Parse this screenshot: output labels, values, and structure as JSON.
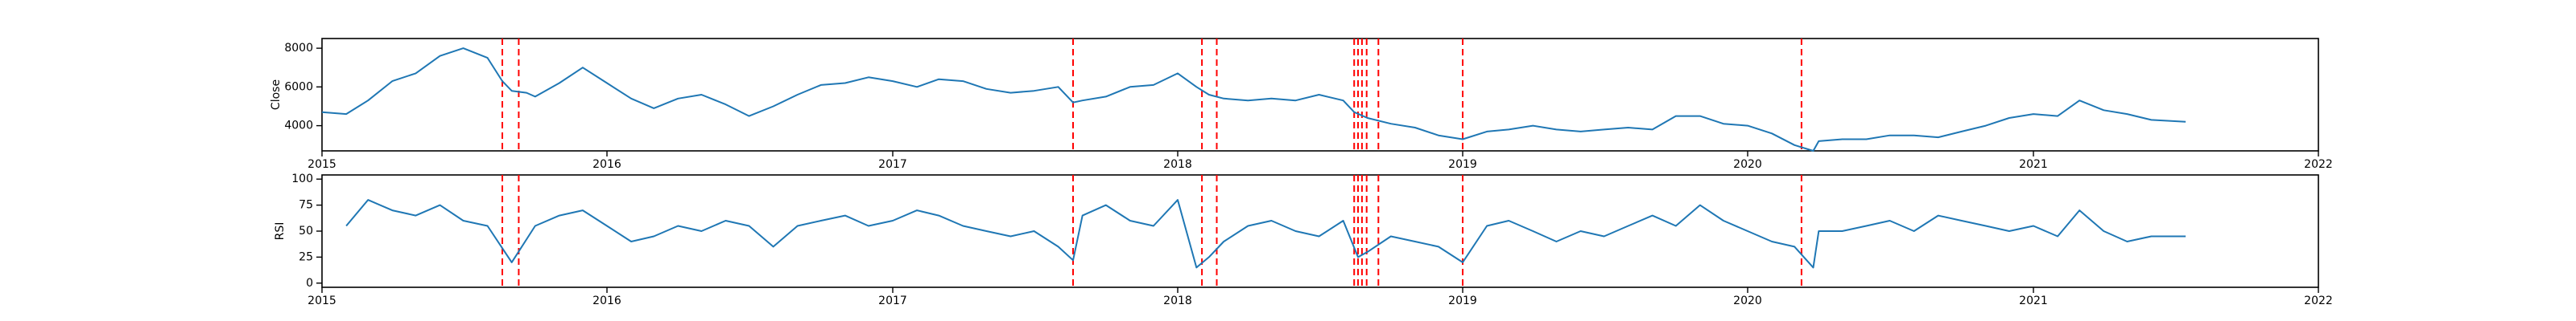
{
  "charts": {
    "price": {
      "ylabel": "Close"
    },
    "rsi": {
      "ylabel": "RSI"
    }
  },
  "chart_data": [
    {
      "type": "line",
      "title": "",
      "xlabel": "",
      "ylabel": "Close",
      "xlim": [
        "2015-01-01",
        "2022-01-01"
      ],
      "ylim": [
        2700,
        8500
      ],
      "xticks": [
        "2015",
        "2016",
        "2017",
        "2018",
        "2019",
        "2020",
        "2021",
        "2022"
      ],
      "yticks": [
        4000,
        6000,
        8000
      ],
      "grid": false,
      "line_color": "#1f77b4",
      "marker_color": "#ff0000",
      "series": [
        {
          "x": [
            "2015-01-01",
            "2015-02-01",
            "2015-03-01",
            "2015-04-01",
            "2015-05-01",
            "2015-06-01",
            "2015-07-01",
            "2015-08-01",
            "2015-08-20",
            "2015-09-01",
            "2015-09-20",
            "2015-10-01",
            "2015-11-01",
            "2015-12-01",
            "2016-01-01",
            "2016-02-01",
            "2016-03-01",
            "2016-04-01",
            "2016-05-01",
            "2016-06-01",
            "2016-07-01",
            "2016-08-01",
            "2016-09-01",
            "2016-10-01",
            "2016-11-01",
            "2016-12-01",
            "2017-01-01",
            "2017-02-01",
            "2017-03-01",
            "2017-04-01",
            "2017-05-01",
            "2017-06-01",
            "2017-07-01",
            "2017-08-01",
            "2017-08-20",
            "2017-09-01",
            "2017-10-01",
            "2017-11-01",
            "2017-12-01",
            "2018-01-01",
            "2018-01-25",
            "2018-02-10",
            "2018-03-01",
            "2018-04-01",
            "2018-05-01",
            "2018-06-01",
            "2018-07-01",
            "2018-08-01",
            "2018-08-15",
            "2018-09-01",
            "2018-10-01",
            "2018-11-01",
            "2018-12-01",
            "2019-01-01",
            "2019-02-01",
            "2019-03-01",
            "2019-04-01",
            "2019-05-01",
            "2019-06-01",
            "2019-07-01",
            "2019-08-01",
            "2019-09-01",
            "2019-10-01",
            "2019-11-01",
            "2019-12-01",
            "2020-01-01",
            "2020-02-01",
            "2020-03-01",
            "2020-03-25",
            "2020-04-01",
            "2020-05-01",
            "2020-06-01",
            "2020-07-01",
            "2020-08-01",
            "2020-09-01",
            "2020-10-01",
            "2020-11-01",
            "2020-12-01",
            "2021-01-01",
            "2021-02-01",
            "2021-03-01",
            "2021-04-01",
            "2021-05-01",
            "2021-06-01",
            "2021-07-15"
          ],
          "y": [
            4700,
            4600,
            5300,
            6300,
            6700,
            7600,
            8000,
            7500,
            6300,
            5800,
            5700,
            5500,
            6200,
            7000,
            6200,
            5400,
            4900,
            5400,
            5600,
            5100,
            4500,
            5000,
            5600,
            6100,
            6200,
            6500,
            6300,
            6000,
            6400,
            6300,
            5900,
            5700,
            5800,
            6000,
            5200,
            5300,
            5500,
            6000,
            6100,
            6700,
            6000,
            5600,
            5400,
            5300,
            5400,
            5300,
            5600,
            5300,
            4700,
            4400,
            4100,
            3900,
            3500,
            3300,
            3700,
            3800,
            4000,
            3800,
            3700,
            3800,
            3900,
            3800,
            4500,
            4500,
            4100,
            4000,
            3600,
            3000,
            2700,
            3200,
            3300,
            3300,
            3500,
            3500,
            3400,
            3700,
            4000,
            4400,
            4600,
            4500,
            5300,
            4800,
            4600,
            4300,
            4200
          ]
        }
      ],
      "event_dates": [
        "2015-08-20",
        "2015-09-10",
        "2017-08-20",
        "2018-02-01",
        "2018-02-20",
        "2018-08-15",
        "2018-08-20",
        "2018-08-25",
        "2018-08-31",
        "2018-09-15",
        "2019-01-01",
        "2020-03-10"
      ]
    },
    {
      "type": "line",
      "title": "",
      "xlabel": "",
      "ylabel": "RSI",
      "xlim": [
        "2015-01-01",
        "2022-01-01"
      ],
      "ylim": [
        -4,
        104
      ],
      "xticks": [
        "2015",
        "2016",
        "2017",
        "2018",
        "2019",
        "2020",
        "2021",
        "2022"
      ],
      "yticks": [
        0,
        25,
        50,
        75,
        100
      ],
      "grid": false,
      "line_color": "#1f77b4",
      "marker_color": "#ff0000",
      "series": [
        {
          "x": [
            "2015-02-01",
            "2015-03-01",
            "2015-04-01",
            "2015-05-01",
            "2015-06-01",
            "2015-07-01",
            "2015-08-01",
            "2015-09-01",
            "2015-10-01",
            "2015-11-01",
            "2015-12-01",
            "2016-01-01",
            "2016-02-01",
            "2016-03-01",
            "2016-04-01",
            "2016-05-01",
            "2016-06-01",
            "2016-07-01",
            "2016-08-01",
            "2016-09-01",
            "2016-10-01",
            "2016-11-01",
            "2016-12-01",
            "2017-01-01",
            "2017-02-01",
            "2017-03-01",
            "2017-04-01",
            "2017-05-01",
            "2017-06-01",
            "2017-07-01",
            "2017-08-01",
            "2017-08-20",
            "2017-09-01",
            "2017-10-01",
            "2017-11-01",
            "2017-12-01",
            "2018-01-01",
            "2018-01-25",
            "2018-02-10",
            "2018-03-01",
            "2018-04-01",
            "2018-05-01",
            "2018-06-01",
            "2018-07-01",
            "2018-08-01",
            "2018-08-20",
            "2018-09-01",
            "2018-10-01",
            "2018-11-01",
            "2018-12-01",
            "2019-01-01",
            "2019-02-01",
            "2019-03-01",
            "2019-04-01",
            "2019-05-01",
            "2019-06-01",
            "2019-07-01",
            "2019-08-01",
            "2019-09-01",
            "2019-10-01",
            "2019-11-01",
            "2019-12-01",
            "2020-01-01",
            "2020-02-01",
            "2020-03-01",
            "2020-03-25",
            "2020-04-01",
            "2020-05-01",
            "2020-06-01",
            "2020-07-01",
            "2020-08-01",
            "2020-09-01",
            "2020-10-01",
            "2020-11-01",
            "2020-12-01",
            "2021-01-01",
            "2021-02-01",
            "2021-03-01",
            "2021-04-01",
            "2021-05-01",
            "2021-06-01",
            "2021-07-15"
          ],
          "y": [
            55,
            80,
            70,
            65,
            75,
            60,
            55,
            20,
            55,
            65,
            70,
            55,
            40,
            45,
            55,
            50,
            60,
            55,
            35,
            55,
            60,
            65,
            55,
            60,
            70,
            65,
            55,
            50,
            45,
            50,
            35,
            22,
            65,
            75,
            60,
            55,
            80,
            15,
            25,
            40,
            55,
            60,
            50,
            45,
            60,
            25,
            30,
            45,
            40,
            35,
            20,
            55,
            60,
            50,
            40,
            50,
            45,
            55,
            65,
            55,
            75,
            60,
            50,
            40,
            35,
            15,
            50,
            50,
            55,
            60,
            50,
            65,
            60,
            55,
            50,
            55,
            45,
            70,
            50,
            40,
            45,
            45
          ]
        }
      ],
      "event_dates": [
        "2015-08-20",
        "2015-09-10",
        "2017-08-20",
        "2018-02-01",
        "2018-02-20",
        "2018-08-15",
        "2018-08-20",
        "2018-08-25",
        "2018-08-31",
        "2018-09-15",
        "2019-01-01",
        "2020-03-10"
      ]
    }
  ]
}
